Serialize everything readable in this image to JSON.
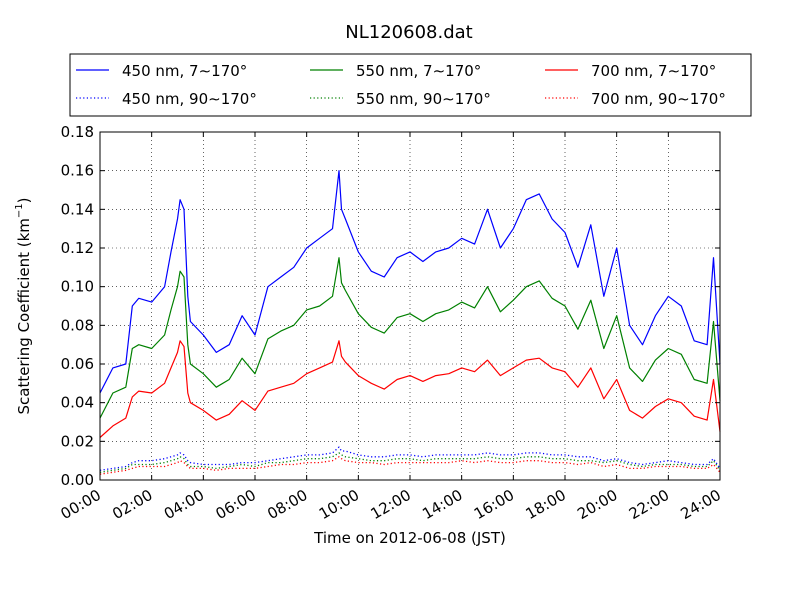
{
  "chart_data": {
    "type": "line",
    "title": "NL120608.dat",
    "xlabel": "Time on 2012-06-08 (JST)",
    "ylabel_prefix": "Scattering Coefficient (km",
    "ylabel_exp": "−1",
    "ylabel_suffix": ")",
    "xlim": [
      0,
      24
    ],
    "ylim": [
      0,
      0.18
    ],
    "xticks": [
      0,
      2,
      4,
      6,
      8,
      10,
      12,
      14,
      16,
      18,
      20,
      22,
      24
    ],
    "xtick_labels": [
      "00:00",
      "02:00",
      "04:00",
      "06:00",
      "08:00",
      "10:00",
      "12:00",
      "14:00",
      "16:00",
      "18:00",
      "20:00",
      "22:00",
      "24:00"
    ],
    "yticks": [
      0,
      0.02,
      0.04,
      0.06,
      0.08,
      0.1,
      0.12,
      0.14,
      0.16,
      0.18
    ],
    "ytick_labels": [
      "0.00",
      "0.02",
      "0.04",
      "0.06",
      "0.08",
      "0.10",
      "0.12",
      "0.14",
      "0.16",
      "0.18"
    ],
    "grid": true,
    "legend_position": "top, above plot",
    "x": [
      0,
      0.5,
      1,
      1.25,
      1.5,
      2,
      2.5,
      2.75,
      3,
      3.1,
      3.25,
      3.4,
      3.5,
      4,
      4.5,
      5,
      5.5,
      6,
      6.5,
      7,
      7.5,
      8,
      8.5,
      9,
      9.25,
      9.35,
      9.5,
      10,
      10.5,
      11,
      11.5,
      12,
      12.5,
      13,
      13.5,
      14,
      14.5,
      15,
      15.5,
      16,
      16.5,
      17,
      17.5,
      18,
      18.5,
      19,
      19.5,
      20,
      20.5,
      21,
      21.5,
      22,
      22.5,
      23,
      23.5,
      23.75,
      24
    ],
    "series": [
      {
        "name": "450 nm, 7∼170°",
        "color": "#0000ff",
        "style": "solid",
        "values": [
          0.045,
          0.058,
          0.06,
          0.09,
          0.094,
          0.092,
          0.1,
          0.118,
          0.135,
          0.145,
          0.14,
          0.095,
          0.082,
          0.075,
          0.066,
          0.07,
          0.085,
          0.075,
          0.1,
          0.105,
          0.11,
          0.12,
          0.125,
          0.13,
          0.16,
          0.14,
          0.135,
          0.118,
          0.108,
          0.105,
          0.115,
          0.118,
          0.113,
          0.118,
          0.12,
          0.125,
          0.122,
          0.14,
          0.12,
          0.13,
          0.145,
          0.148,
          0.135,
          0.128,
          0.11,
          0.132,
          0.095,
          0.12,
          0.08,
          0.07,
          0.085,
          0.095,
          0.09,
          0.072,
          0.07,
          0.115,
          0.06
        ]
      },
      {
        "name": "550 nm, 7∼170°",
        "color": "#008000",
        "style": "solid",
        "values": [
          0.032,
          0.045,
          0.048,
          0.068,
          0.07,
          0.068,
          0.075,
          0.088,
          0.1,
          0.108,
          0.105,
          0.07,
          0.06,
          0.055,
          0.048,
          0.052,
          0.063,
          0.055,
          0.073,
          0.077,
          0.08,
          0.088,
          0.09,
          0.095,
          0.115,
          0.102,
          0.098,
          0.086,
          0.079,
          0.076,
          0.084,
          0.086,
          0.082,
          0.086,
          0.088,
          0.092,
          0.089,
          0.1,
          0.087,
          0.093,
          0.1,
          0.103,
          0.094,
          0.09,
          0.078,
          0.093,
          0.068,
          0.085,
          0.058,
          0.051,
          0.062,
          0.068,
          0.065,
          0.052,
          0.05,
          0.082,
          0.041
        ]
      },
      {
        "name": "700 nm, 7∼170°",
        "color": "#ff0000",
        "style": "solid",
        "values": [
          0.022,
          0.028,
          0.032,
          0.043,
          0.046,
          0.045,
          0.05,
          0.058,
          0.066,
          0.072,
          0.069,
          0.045,
          0.04,
          0.036,
          0.031,
          0.034,
          0.041,
          0.036,
          0.046,
          0.048,
          0.05,
          0.055,
          0.058,
          0.061,
          0.072,
          0.064,
          0.061,
          0.054,
          0.05,
          0.047,
          0.052,
          0.054,
          0.051,
          0.054,
          0.055,
          0.058,
          0.056,
          0.062,
          0.054,
          0.058,
          0.062,
          0.063,
          0.058,
          0.056,
          0.048,
          0.058,
          0.042,
          0.052,
          0.036,
          0.032,
          0.038,
          0.042,
          0.04,
          0.033,
          0.031,
          0.052,
          0.025
        ]
      },
      {
        "name": "450 nm, 90∼170°",
        "color": "#0000ff",
        "style": "dotted",
        "values": [
          0.005,
          0.006,
          0.007,
          0.009,
          0.01,
          0.01,
          0.011,
          0.012,
          0.013,
          0.014,
          0.013,
          0.01,
          0.009,
          0.008,
          0.008,
          0.008,
          0.009,
          0.009,
          0.01,
          0.011,
          0.012,
          0.013,
          0.013,
          0.014,
          0.017,
          0.015,
          0.015,
          0.013,
          0.012,
          0.012,
          0.013,
          0.013,
          0.012,
          0.013,
          0.013,
          0.013,
          0.013,
          0.014,
          0.013,
          0.013,
          0.014,
          0.014,
          0.013,
          0.013,
          0.012,
          0.012,
          0.01,
          0.011,
          0.009,
          0.008,
          0.009,
          0.01,
          0.009,
          0.008,
          0.008,
          0.011,
          0.006
        ]
      },
      {
        "name": "550 nm, 90∼170°",
        "color": "#008000",
        "style": "dotted",
        "values": [
          0.004,
          0.005,
          0.006,
          0.008,
          0.008,
          0.008,
          0.009,
          0.01,
          0.011,
          0.012,
          0.011,
          0.008,
          0.007,
          0.007,
          0.006,
          0.007,
          0.008,
          0.007,
          0.009,
          0.009,
          0.01,
          0.011,
          0.011,
          0.012,
          0.014,
          0.013,
          0.012,
          0.011,
          0.01,
          0.01,
          0.011,
          0.011,
          0.01,
          0.011,
          0.011,
          0.011,
          0.011,
          0.012,
          0.011,
          0.011,
          0.012,
          0.012,
          0.011,
          0.011,
          0.01,
          0.01,
          0.009,
          0.01,
          0.008,
          0.007,
          0.008,
          0.008,
          0.008,
          0.007,
          0.007,
          0.01,
          0.005
        ]
      },
      {
        "name": "700 nm, 90∼170°",
        "color": "#ff0000",
        "style": "dotted",
        "values": [
          0.003,
          0.004,
          0.005,
          0.006,
          0.007,
          0.007,
          0.007,
          0.008,
          0.009,
          0.01,
          0.009,
          0.007,
          0.006,
          0.006,
          0.005,
          0.006,
          0.006,
          0.006,
          0.007,
          0.008,
          0.008,
          0.009,
          0.009,
          0.01,
          0.012,
          0.011,
          0.01,
          0.009,
          0.009,
          0.008,
          0.009,
          0.009,
          0.009,
          0.009,
          0.009,
          0.01,
          0.009,
          0.01,
          0.009,
          0.009,
          0.01,
          0.01,
          0.009,
          0.009,
          0.008,
          0.009,
          0.007,
          0.008,
          0.006,
          0.006,
          0.007,
          0.007,
          0.007,
          0.006,
          0.006,
          0.008,
          0.004
        ]
      }
    ],
    "legend_order": [
      0,
      1,
      2,
      3,
      4,
      5
    ]
  }
}
